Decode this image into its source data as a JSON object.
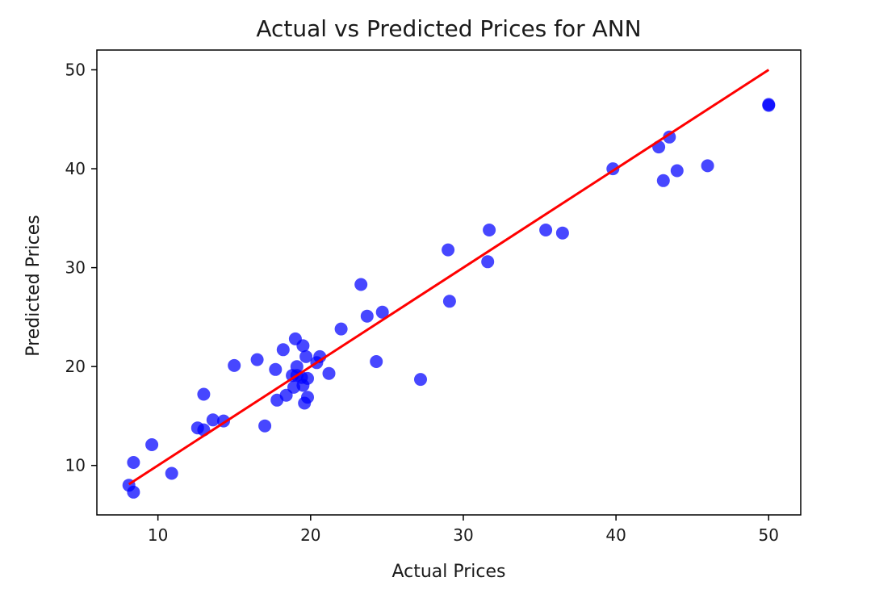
{
  "chart_data": {
    "type": "scatter",
    "title": "Actual vs Predicted Prices for ANN",
    "xlabel": "Actual Prices",
    "ylabel": "Predicted Prices",
    "xlim": [
      6.0,
      52.1
    ],
    "ylim": [
      5.0,
      52.0
    ],
    "xticks": [
      10,
      20,
      30,
      40,
      50
    ],
    "yticks": [
      10,
      20,
      30,
      40,
      50
    ],
    "grid": false,
    "colors": {
      "points": "#0000ff",
      "fit_line": "#ff0000"
    },
    "series": [
      {
        "kind": "points",
        "x": [
          8.1,
          8.4,
          8.4,
          9.6,
          10.9,
          12.6,
          13.0,
          13.0,
          13.6,
          14.3,
          15.0,
          16.5,
          17.0,
          17.7,
          17.8,
          18.2,
          18.4,
          18.8,
          18.9,
          19.0,
          19.1,
          19.1,
          19.4,
          19.5,
          19.5,
          19.6,
          19.7,
          19.8,
          19.8,
          20.4,
          20.6,
          21.2,
          22.0,
          23.3,
          23.7,
          24.3,
          24.7,
          27.2,
          29.0,
          29.1,
          31.6,
          31.7,
          35.4,
          36.5,
          39.8,
          42.8,
          43.1,
          43.5,
          44.0,
          46.0,
          50.0,
          50.0
        ],
        "y": [
          8.0,
          10.3,
          7.3,
          12.1,
          9.2,
          13.8,
          13.6,
          17.2,
          14.6,
          14.5,
          20.1,
          20.7,
          14.0,
          19.7,
          16.6,
          21.7,
          17.1,
          19.1,
          17.9,
          22.8,
          19.1,
          20.0,
          18.9,
          18.1,
          22.1,
          16.3,
          21.0,
          16.9,
          18.8,
          20.4,
          21.0,
          19.3,
          23.8,
          28.3,
          25.1,
          20.5,
          25.5,
          18.7,
          31.8,
          26.6,
          30.6,
          33.8,
          33.8,
          33.5,
          40.0,
          42.2,
          38.8,
          43.2,
          39.8,
          40.3,
          46.4,
          46.5
        ]
      },
      {
        "kind": "line",
        "x": [
          8.1,
          50.0
        ],
        "y": [
          8.1,
          50.0
        ]
      }
    ]
  }
}
